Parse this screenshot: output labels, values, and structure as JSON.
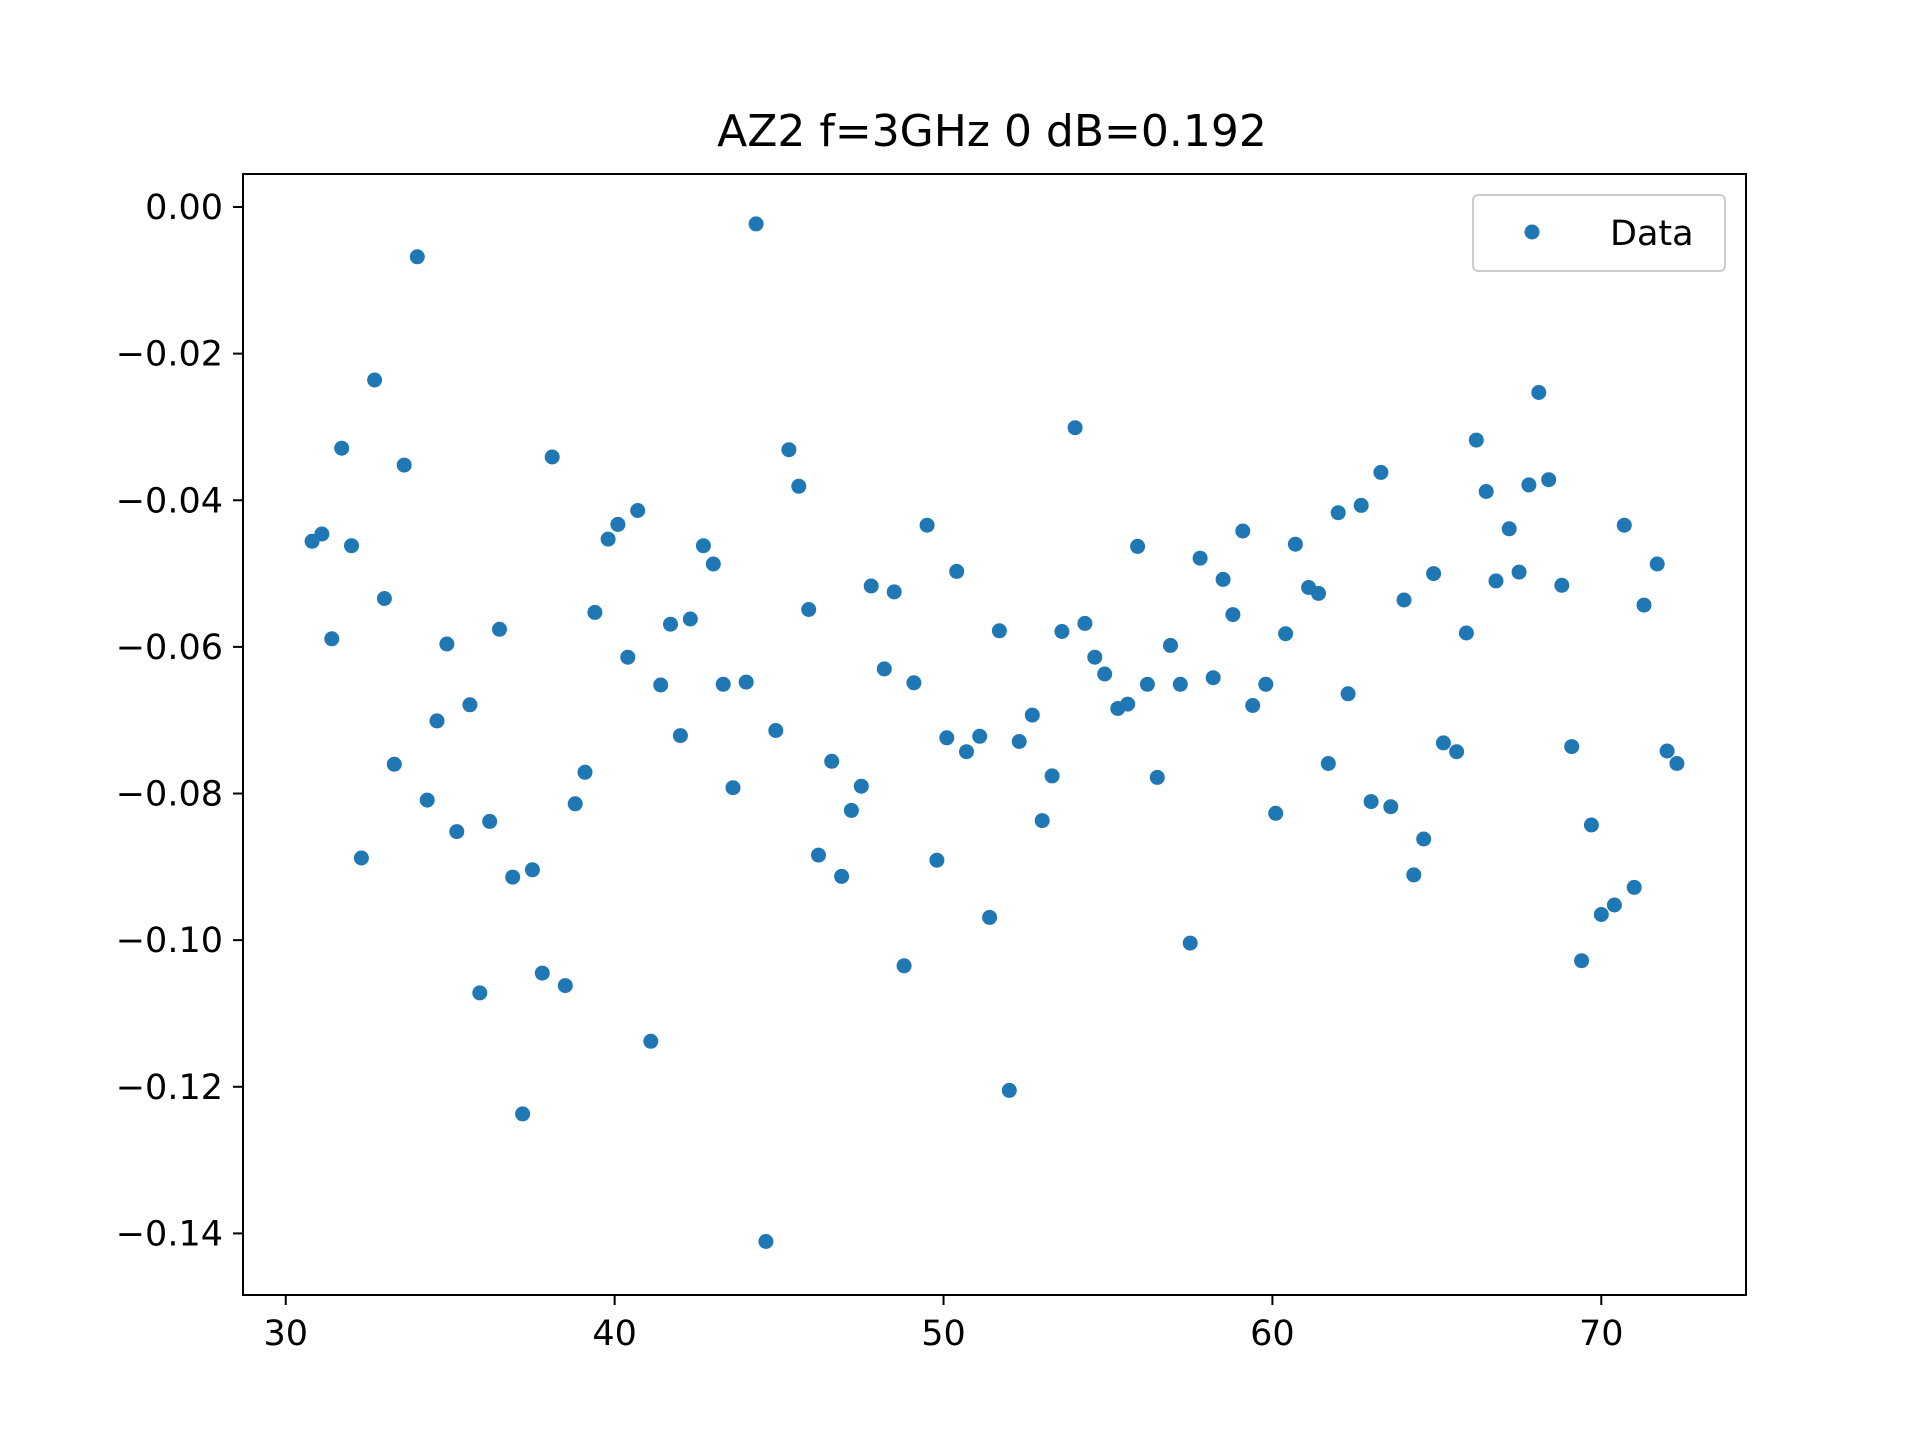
{
  "colors": {
    "marker": "#1f77b4",
    "axes": "#000000",
    "background": "#ffffff",
    "legend_border": "#cccccc"
  },
  "chart_data": {
    "type": "scatter",
    "title": "AZ2 f=3GHz 0 dB=0.192",
    "xlabel": "",
    "ylabel": "",
    "xlim": [
      28.7,
      74.4
    ],
    "ylim": [
      -0.1484,
      0.0045
    ],
    "xticks": [
      30,
      40,
      50,
      60,
      70
    ],
    "xtick_labels": [
      "30",
      "40",
      "50",
      "60",
      "70"
    ],
    "yticks": [
      0.0,
      -0.02,
      -0.04,
      -0.06,
      -0.08,
      -0.1,
      -0.12,
      -0.14
    ],
    "ytick_labels": [
      "0.00",
      "−0.02",
      "−0.04",
      "−0.06",
      "−0.08",
      "−0.10",
      "−0.12",
      "−0.14"
    ],
    "grid": false,
    "legend_position": "top-right",
    "series": [
      {
        "name": "Data",
        "marker": "dot",
        "points": [
          [
            30.8,
            -0.0456
          ],
          [
            31.1,
            -0.0446
          ],
          [
            31.4,
            -0.0589
          ],
          [
            31.7,
            -0.0329
          ],
          [
            32.0,
            -0.0462
          ],
          [
            32.3,
            -0.0888
          ],
          [
            32.7,
            -0.0236
          ],
          [
            33.0,
            -0.0534
          ],
          [
            33.3,
            -0.076
          ],
          [
            33.6,
            -0.0352
          ],
          [
            34.0,
            -0.0068
          ],
          [
            34.3,
            -0.0809
          ],
          [
            34.6,
            -0.0701
          ],
          [
            34.9,
            -0.0596
          ],
          [
            35.2,
            -0.0852
          ],
          [
            35.6,
            -0.0679
          ],
          [
            35.9,
            -0.1072
          ],
          [
            36.2,
            -0.0838
          ],
          [
            36.5,
            -0.0576
          ],
          [
            36.9,
            -0.0914
          ],
          [
            37.2,
            -0.1237
          ],
          [
            37.5,
            -0.0904
          ],
          [
            37.8,
            -0.1045
          ],
          [
            38.1,
            -0.0341
          ],
          [
            38.5,
            -0.1062
          ],
          [
            38.8,
            -0.0814
          ],
          [
            39.1,
            -0.0771
          ],
          [
            39.4,
            -0.0553
          ],
          [
            39.8,
            -0.0453
          ],
          [
            40.1,
            -0.0433
          ],
          [
            40.4,
            -0.0614
          ],
          [
            40.7,
            -0.0414
          ],
          [
            41.1,
            -0.1138
          ],
          [
            41.4,
            -0.0652
          ],
          [
            41.7,
            -0.0569
          ],
          [
            42.0,
            -0.0721
          ],
          [
            42.3,
            -0.0562
          ],
          [
            42.7,
            -0.0462
          ],
          [
            43.0,
            -0.0487
          ],
          [
            43.3,
            -0.0651
          ],
          [
            43.6,
            -0.0792
          ],
          [
            44.0,
            -0.0648
          ],
          [
            44.3,
            -0.0023
          ],
          [
            44.6,
            -0.1411
          ],
          [
            44.9,
            -0.0714
          ],
          [
            45.3,
            -0.0331
          ],
          [
            45.6,
            -0.0381
          ],
          [
            45.9,
            -0.0549
          ],
          [
            46.2,
            -0.0884
          ],
          [
            46.6,
            -0.0756
          ],
          [
            46.9,
            -0.0913
          ],
          [
            47.2,
            -0.0823
          ],
          [
            47.5,
            -0.079
          ],
          [
            47.8,
            -0.0517
          ],
          [
            48.2,
            -0.063
          ],
          [
            48.5,
            -0.0525
          ],
          [
            48.8,
            -0.1035
          ],
          [
            49.1,
            -0.0649
          ],
          [
            49.5,
            -0.0434
          ],
          [
            49.8,
            -0.0891
          ],
          [
            50.1,
            -0.0724
          ],
          [
            50.4,
            -0.0497
          ],
          [
            50.7,
            -0.0743
          ],
          [
            51.1,
            -0.0722
          ],
          [
            51.4,
            -0.0969
          ],
          [
            51.7,
            -0.0578
          ],
          [
            52.0,
            -0.1205
          ],
          [
            52.3,
            -0.0729
          ],
          [
            52.7,
            -0.0693
          ],
          [
            53.0,
            -0.0837
          ],
          [
            53.3,
            -0.0776
          ],
          [
            53.6,
            -0.0579
          ],
          [
            54.0,
            -0.0301
          ],
          [
            54.3,
            -0.0568
          ],
          [
            54.6,
            -0.0614
          ],
          [
            54.9,
            -0.0637
          ],
          [
            55.3,
            -0.0684
          ],
          [
            55.6,
            -0.0678
          ],
          [
            55.9,
            -0.0463
          ],
          [
            56.2,
            -0.0651
          ],
          [
            56.5,
            -0.0778
          ],
          [
            56.9,
            -0.0598
          ],
          [
            57.2,
            -0.0651
          ],
          [
            57.5,
            -0.1004
          ],
          [
            57.8,
            -0.0479
          ],
          [
            58.2,
            -0.0642
          ],
          [
            58.5,
            -0.0508
          ],
          [
            58.8,
            -0.0556
          ],
          [
            59.1,
            -0.0442
          ],
          [
            59.4,
            -0.068
          ],
          [
            59.8,
            -0.0651
          ],
          [
            60.1,
            -0.0827
          ],
          [
            60.4,
            -0.0582
          ],
          [
            60.7,
            -0.046
          ],
          [
            61.1,
            -0.0519
          ],
          [
            61.4,
            -0.0527
          ],
          [
            61.7,
            -0.0759
          ],
          [
            62.0,
            -0.0417
          ],
          [
            62.3,
            -0.0664
          ],
          [
            62.7,
            -0.0407
          ],
          [
            63.0,
            -0.0811
          ],
          [
            63.3,
            -0.0362
          ],
          [
            63.6,
            -0.0818
          ],
          [
            64.0,
            -0.0536
          ],
          [
            64.3,
            -0.0911
          ],
          [
            64.6,
            -0.0862
          ],
          [
            64.9,
            -0.05
          ],
          [
            65.2,
            -0.0731
          ],
          [
            65.6,
            -0.0743
          ],
          [
            65.9,
            -0.0581
          ],
          [
            66.2,
            -0.0318
          ],
          [
            66.5,
            -0.0388
          ],
          [
            66.8,
            -0.051
          ],
          [
            67.2,
            -0.0439
          ],
          [
            67.5,
            -0.0498
          ],
          [
            67.8,
            -0.0379
          ],
          [
            68.1,
            -0.0253
          ],
          [
            68.4,
            -0.0372
          ],
          [
            68.8,
            -0.0516
          ],
          [
            69.1,
            -0.0736
          ],
          [
            69.4,
            -0.1028
          ],
          [
            69.7,
            -0.0843
          ],
          [
            70.0,
            -0.0965
          ],
          [
            70.4,
            -0.0952
          ],
          [
            70.7,
            -0.0434
          ],
          [
            71.0,
            -0.0928
          ],
          [
            71.3,
            -0.0543
          ],
          [
            71.7,
            -0.0487
          ],
          [
            72.0,
            -0.0742
          ],
          [
            72.3,
            -0.0759
          ]
        ]
      }
    ]
  }
}
